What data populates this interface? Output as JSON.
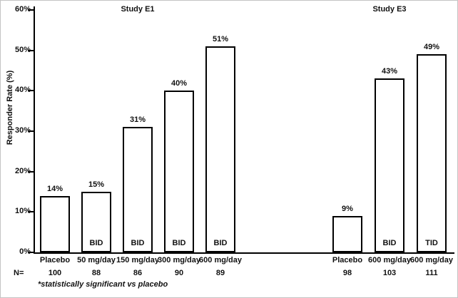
{
  "chart_data": {
    "type": "bar",
    "ylabel": "Responder Rate (%)",
    "ylim": [
      0,
      60
    ],
    "ytick_step": 10,
    "ytick_labels": [
      "0%",
      "10%",
      "20%",
      "30%",
      "40%",
      "50%",
      "60%"
    ],
    "n_row_label": "N=",
    "footnote": "*statistically significant vs placebo",
    "colors": {
      "bar_fill": "#ffffff",
      "bar_border": "#000000",
      "text": "#111111"
    },
    "groups": [
      {
        "title": "Study E1",
        "bars": [
          {
            "label": "Placebo",
            "value": 14,
            "value_label": "14%",
            "schedule": "",
            "n": "100"
          },
          {
            "label": "50 mg/day",
            "value": 15,
            "value_label": "15%",
            "schedule": "BID",
            "n": "88"
          },
          {
            "label": "150 mg/day",
            "value": 31,
            "value_label": "31%",
            "schedule": "BID",
            "n": "86"
          },
          {
            "label": "300 mg/day",
            "value": 40,
            "value_label": "40%",
            "schedule": "BID",
            "n": "90"
          },
          {
            "label": "600 mg/day",
            "value": 51,
            "value_label": "51%",
            "schedule": "BID",
            "n": "89"
          }
        ]
      },
      {
        "title": "Study E3",
        "bars": [
          {
            "label": "Placebo",
            "value": 9,
            "value_label": "9%",
            "schedule": "",
            "n": "98"
          },
          {
            "label": "600 mg/day",
            "value": 43,
            "value_label": "43%",
            "schedule": "BID",
            "n": "103"
          },
          {
            "label": "600 mg/day",
            "value": 49,
            "value_label": "49%",
            "schedule": "TID",
            "n": "111"
          }
        ]
      }
    ]
  }
}
